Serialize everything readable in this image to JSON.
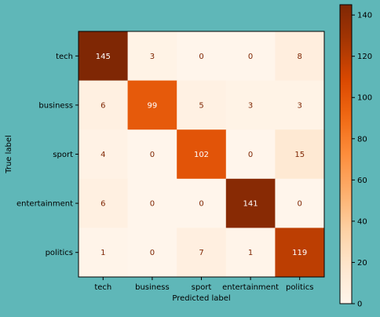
{
  "chart_data": {
    "type": "heatmap",
    "title": "",
    "xlabel": "Predicted label",
    "ylabel": "True label",
    "x_categories": [
      "tech",
      "business",
      "sport",
      "entertainment",
      "politics"
    ],
    "y_categories": [
      "tech",
      "business",
      "sport",
      "entertainment",
      "politics"
    ],
    "values": [
      [
        145,
        3,
        0,
        0,
        8
      ],
      [
        6,
        99,
        5,
        3,
        3
      ],
      [
        4,
        0,
        102,
        0,
        15
      ],
      [
        6,
        0,
        0,
        141,
        0
      ],
      [
        1,
        0,
        7,
        1,
        119
      ]
    ],
    "colorscale": "Oranges",
    "colorbar": {
      "min": 0,
      "max": 145,
      "ticks": [
        0,
        20,
        40,
        60,
        80,
        100,
        120,
        140
      ]
    },
    "background_color": "#5fb7b8"
  }
}
